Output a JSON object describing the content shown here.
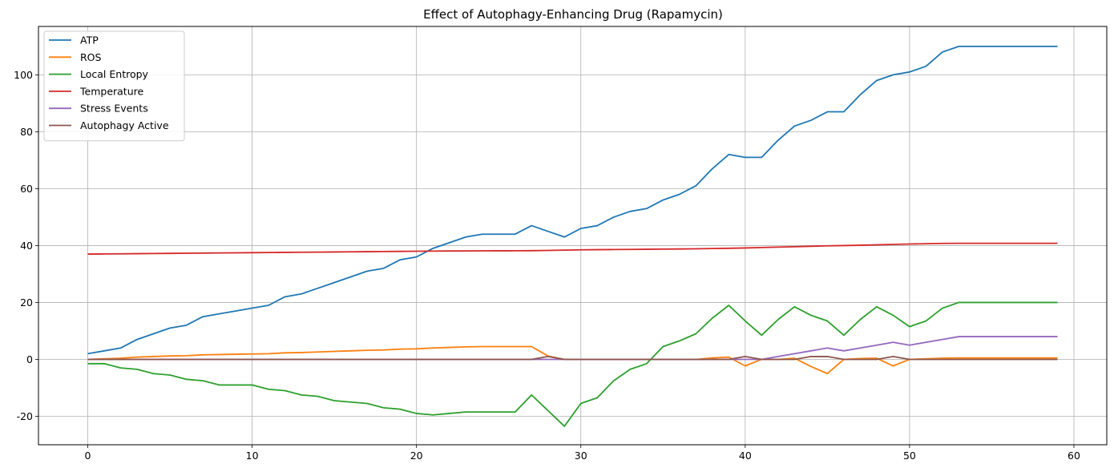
{
  "chart_data": {
    "type": "line",
    "title": "Effect of Autophagy-Enhancing Drug (Rapamycin)",
    "xlabel": "",
    "ylabel": "",
    "xlim": [
      -3,
      62
    ],
    "ylim": [
      -30,
      117
    ],
    "xticks": [
      0,
      10,
      20,
      30,
      40,
      50,
      60
    ],
    "yticks": [
      -20,
      0,
      20,
      40,
      60,
      80,
      100
    ],
    "grid": true,
    "legend_position": "upper-left",
    "x": [
      0,
      1,
      2,
      3,
      4,
      5,
      6,
      7,
      8,
      9,
      10,
      11,
      12,
      13,
      14,
      15,
      16,
      17,
      18,
      19,
      20,
      21,
      22,
      23,
      24,
      25,
      26,
      27,
      28,
      29,
      30,
      31,
      32,
      33,
      34,
      35,
      36,
      37,
      38,
      39,
      40,
      41,
      42,
      43,
      44,
      45,
      46,
      47,
      48,
      49,
      50,
      51,
      52,
      53,
      54,
      55,
      56,
      57,
      58,
      59
    ],
    "series": [
      {
        "name": "ATP",
        "color": "#1f77b4",
        "values": [
          2,
          3,
          4,
          7,
          9,
          11,
          12,
          15,
          16,
          17,
          18,
          19,
          22,
          23,
          25,
          27,
          29,
          31,
          32,
          35,
          36,
          39,
          41,
          43,
          44,
          44,
          44,
          47,
          45,
          43,
          46,
          47,
          50,
          52,
          53,
          56,
          58,
          61,
          67,
          72,
          71,
          71,
          77,
          82,
          84,
          87,
          87,
          93,
          98,
          100,
          101,
          103,
          108,
          110,
          110,
          110,
          110,
          110,
          110,
          110
        ]
      },
      {
        "name": "ROS",
        "color": "#ff7f0e",
        "values": [
          0,
          0.2,
          0.4,
          0.8,
          1.0,
          1.2,
          1.3,
          1.6,
          1.7,
          1.8,
          1.9,
          2.0,
          2.3,
          2.4,
          2.6,
          2.8,
          3.0,
          3.2,
          3.3,
          3.6,
          3.7,
          4.0,
          4.2,
          4.4,
          4.5,
          4.5,
          4.5,
          4.5,
          1.2,
          0,
          0,
          0,
          0,
          0,
          0,
          0,
          0,
          0,
          0.5,
          0.8,
          -2.3,
          0,
          0,
          0.4,
          -2.5,
          -5,
          0,
          0.3,
          0.4,
          -2.3,
          0,
          0.2,
          0.4,
          0.5,
          0.5,
          0.5,
          0.5,
          0.5,
          0.5,
          0.5
        ]
      },
      {
        "name": "Local Entropy",
        "color": "#2ca02c",
        "values": [
          -1.5,
          -1.5,
          -3,
          -3.5,
          -5,
          -5.5,
          -7,
          -7.5,
          -9,
          -9,
          -9,
          -10.5,
          -11,
          -12.5,
          -13,
          -14.5,
          -15,
          -15.5,
          -17,
          -17.5,
          -19,
          -19.5,
          -19,
          -18.5,
          -18.5,
          -18.5,
          -18.5,
          -12.5,
          -18,
          -23.5,
          -15.5,
          -13.5,
          -7.5,
          -3.5,
          -1.5,
          4.5,
          6.5,
          9,
          14.5,
          19,
          13.5,
          8.5,
          14,
          18.5,
          15.5,
          13.5,
          8.5,
          14,
          18.5,
          15.5,
          11.5,
          13.5,
          18,
          20,
          20,
          20,
          20,
          20,
          20,
          20
        ]
      },
      {
        "name": "Temperature",
        "color": "#d62728",
        "values": [
          37,
          37.05,
          37.1,
          37.15,
          37.2,
          37.25,
          37.3,
          37.35,
          37.4,
          37.45,
          37.5,
          37.55,
          37.6,
          37.65,
          37.7,
          37.75,
          37.8,
          37.85,
          37.9,
          37.95,
          38,
          38.05,
          38.1,
          38.12,
          38.14,
          38.16,
          38.18,
          38.2,
          38.3,
          38.4,
          38.5,
          38.55,
          38.6,
          38.65,
          38.7,
          38.75,
          38.8,
          38.85,
          38.95,
          39.05,
          39.15,
          39.3,
          39.45,
          39.6,
          39.75,
          39.9,
          40,
          40.1,
          40.25,
          40.4,
          40.55,
          40.65,
          40.75,
          40.8,
          40.8,
          40.8,
          40.8,
          40.8,
          40.8,
          40.8
        ]
      },
      {
        "name": "Stress Events",
        "color": "#9467bd",
        "values": [
          0,
          0,
          0,
          0,
          0,
          0,
          0,
          0,
          0,
          0,
          0,
          0,
          0,
          0,
          0,
          0,
          0,
          0,
          0,
          0,
          0,
          0,
          0,
          0,
          0,
          0,
          0,
          0,
          0,
          0,
          0,
          0,
          0,
          0,
          0,
          0,
          0,
          0,
          0,
          0,
          0,
          0,
          1,
          2,
          3,
          4,
          3,
          4,
          5,
          6,
          5,
          6,
          7,
          8,
          8,
          8,
          8,
          8,
          8,
          8
        ]
      },
      {
        "name": "Autophagy Active",
        "color": "#8c564b",
        "values": [
          0,
          0,
          0,
          0,
          0,
          0,
          0,
          0,
          0,
          0,
          0,
          0,
          0,
          0,
          0,
          0,
          0,
          0,
          0,
          0,
          0,
          0,
          0,
          0,
          0,
          0,
          0,
          0,
          1,
          0,
          0,
          0,
          0,
          0,
          0,
          0,
          0,
          0,
          0,
          0,
          1,
          0,
          0,
          0,
          1,
          1,
          0,
          0,
          0,
          1,
          0,
          0,
          0,
          0,
          0,
          0,
          0,
          0,
          0,
          0
        ]
      }
    ]
  }
}
